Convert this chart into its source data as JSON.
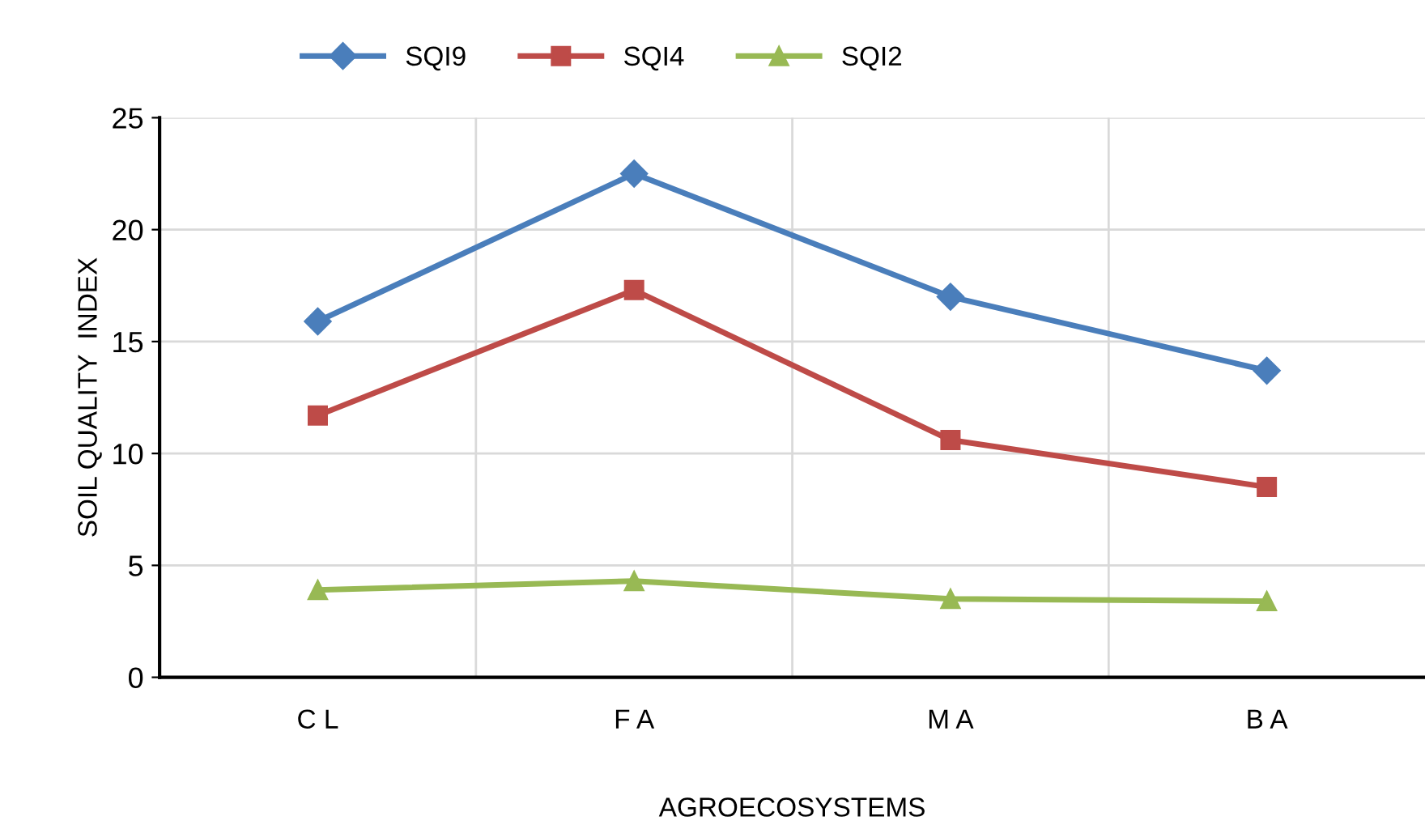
{
  "chart_data": {
    "type": "line",
    "xlabel": "AGROECOSYSTEMS",
    "ylabel": "SOIL QUALITY  INDEX",
    "categories": [
      "C L",
      "F A",
      "M A",
      "B A"
    ],
    "series": [
      {
        "name": "SQI9",
        "color": "#4a7ebb",
        "marker": "diamond",
        "values": [
          15.9,
          22.5,
          17.0,
          13.7
        ]
      },
      {
        "name": "SQI4",
        "color": "#be4b48",
        "marker": "square",
        "values": [
          11.7,
          17.3,
          10.6,
          8.5
        ]
      },
      {
        "name": "SQI2",
        "color": "#98b954",
        "marker": "triangle",
        "values": [
          3.9,
          4.3,
          3.5,
          3.4
        ]
      }
    ],
    "ylim": [
      0,
      25
    ],
    "yticks": [
      0,
      5,
      10,
      15,
      20,
      25
    ],
    "grid": true,
    "legend": "top",
    "line_style": "solid"
  }
}
